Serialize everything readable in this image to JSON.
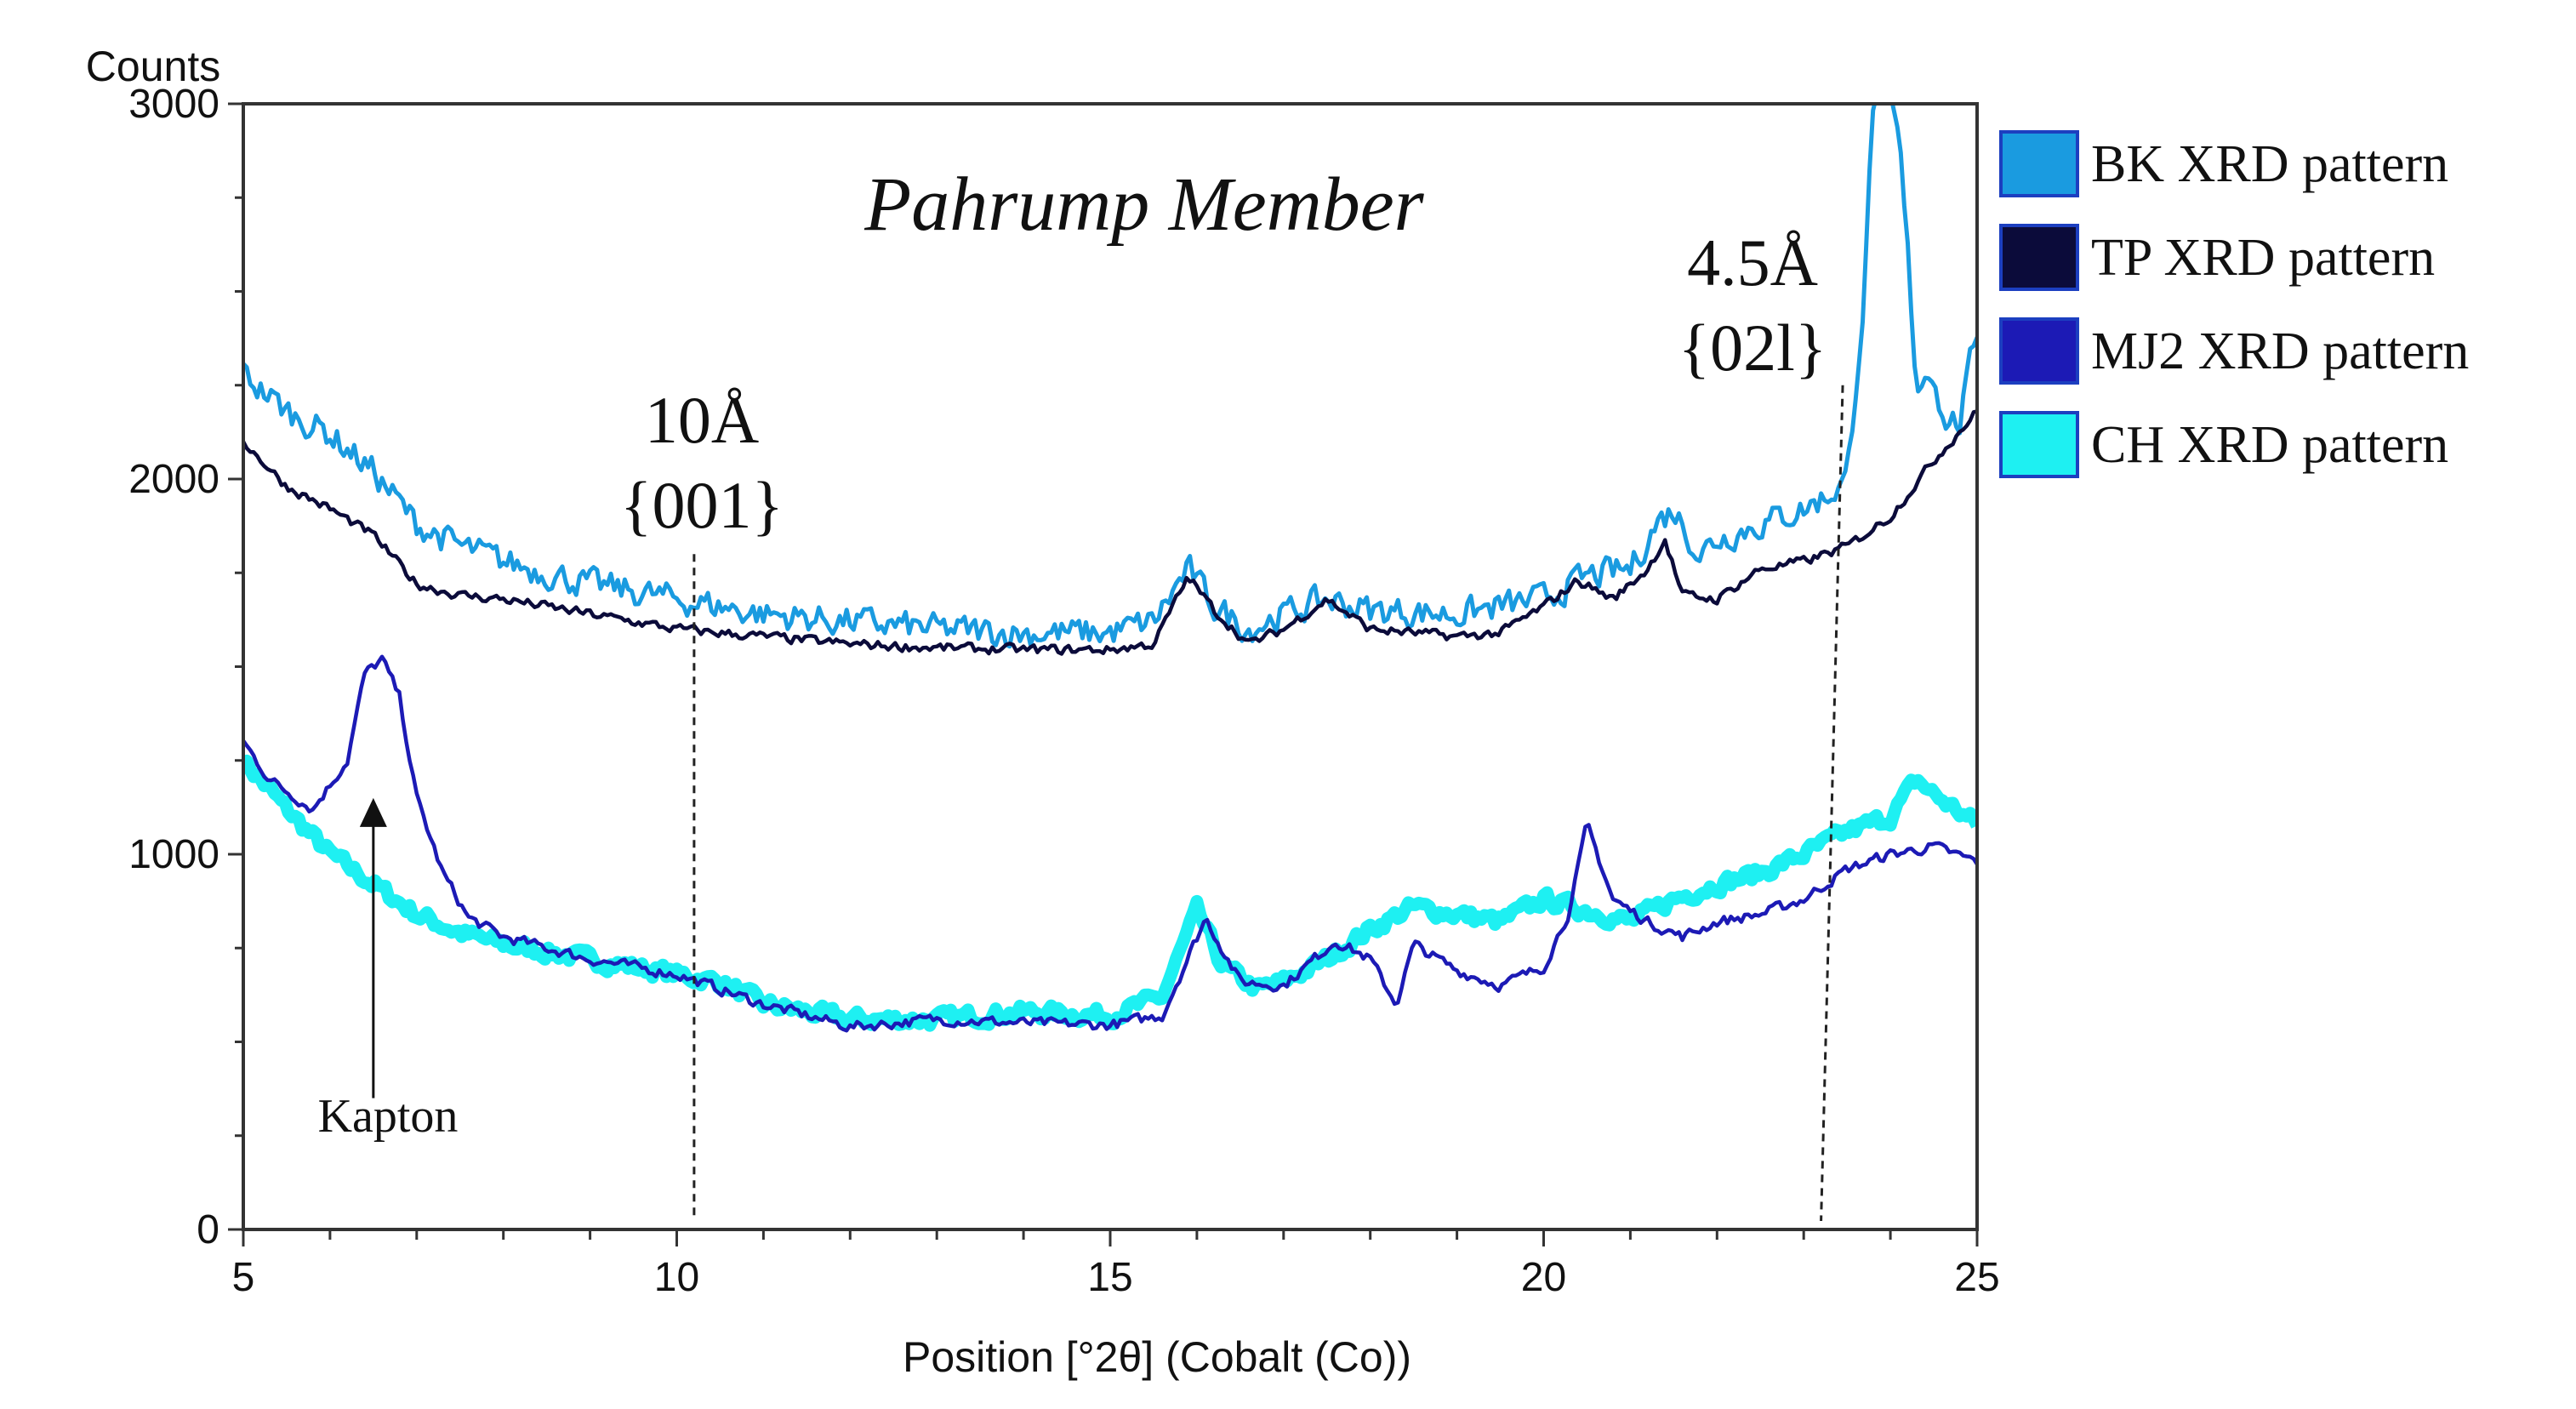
{
  "chart_data": {
    "type": "line",
    "title": "Pahrump Member",
    "ylabel": "Counts",
    "xlabel": "Position [°2θ] (Cobalt (Co))",
    "xlim": [
      5,
      25
    ],
    "ylim": [
      0,
      3000
    ],
    "xticks": [
      5,
      10,
      15,
      20,
      25
    ],
    "yticks": [
      0,
      1000,
      2000,
      3000
    ],
    "grid": false,
    "legend_position": "right",
    "series": [
      {
        "name": "BK XRD pattern",
        "color": "#1a9be0",
        "noise": 55,
        "points": [
          [
            5,
            2280
          ],
          [
            5.5,
            2180
          ],
          [
            6,
            2120
          ],
          [
            6.5,
            2020
          ],
          [
            7,
            1880
          ],
          [
            7.5,
            1820
          ],
          [
            8,
            1780
          ],
          [
            8.5,
            1750
          ],
          [
            9,
            1720
          ],
          [
            10,
            1680
          ],
          [
            11,
            1640
          ],
          [
            12,
            1620
          ],
          [
            13,
            1600
          ],
          [
            14,
            1590
          ],
          [
            15,
            1590
          ],
          [
            15.5,
            1620
          ],
          [
            15.9,
            1760
          ],
          [
            16.2,
            1660
          ],
          [
            16.6,
            1600
          ],
          [
            17,
            1640
          ],
          [
            17.5,
            1680
          ],
          [
            18,
            1650
          ],
          [
            19,
            1640
          ],
          [
            20,
            1680
          ],
          [
            20.5,
            1740
          ],
          [
            21,
            1760
          ],
          [
            21.3,
            1880
          ],
          [
            21.5,
            1920
          ],
          [
            21.8,
            1800
          ],
          [
            22,
            1840
          ],
          [
            22.5,
            1880
          ],
          [
            23,
            1920
          ],
          [
            23.3,
            1960
          ],
          [
            23.5,
            2000
          ],
          [
            23.7,
            2500
          ],
          [
            23.8,
            3000
          ],
          [
            23.9,
            3000
          ],
          [
            24,
            3000
          ],
          [
            24.1,
            2900
          ],
          [
            24.2,
            2600
          ],
          [
            24.3,
            2250
          ],
          [
            24.5,
            2300
          ],
          [
            24.6,
            2160
          ],
          [
            24.8,
            2150
          ],
          [
            25,
            2400
          ]
        ]
      },
      {
        "name": "TP XRD pattern",
        "color": "#0b0b3a",
        "noise": 18,
        "points": [
          [
            5,
            2100
          ],
          [
            5.5,
            1980
          ],
          [
            6,
            1920
          ],
          [
            6.5,
            1850
          ],
          [
            7,
            1720
          ],
          [
            7.5,
            1690
          ],
          [
            8,
            1680
          ],
          [
            8.5,
            1660
          ],
          [
            9,
            1640
          ],
          [
            10,
            1600
          ],
          [
            11,
            1580
          ],
          [
            12,
            1560
          ],
          [
            13,
            1550
          ],
          [
            14,
            1545
          ],
          [
            15,
            1545
          ],
          [
            15.5,
            1560
          ],
          [
            15.9,
            1740
          ],
          [
            16.2,
            1650
          ],
          [
            16.6,
            1560
          ],
          [
            17,
            1600
          ],
          [
            17.5,
            1680
          ],
          [
            18,
            1600
          ],
          [
            19,
            1580
          ],
          [
            19.5,
            1590
          ],
          [
            20,
            1660
          ],
          [
            20.4,
            1730
          ],
          [
            20.8,
            1680
          ],
          [
            21.2,
            1760
          ],
          [
            21.4,
            1840
          ],
          [
            21.6,
            1690
          ],
          [
            22,
            1680
          ],
          [
            22.5,
            1760
          ],
          [
            23,
            1780
          ],
          [
            23.5,
            1820
          ],
          [
            24,
            1900
          ],
          [
            24.5,
            2050
          ],
          [
            25,
            2180
          ]
        ]
      },
      {
        "name": "MJ2 XRD pattern",
        "color": "#1c1ab5",
        "noise": 20,
        "points": [
          [
            5,
            1300
          ],
          [
            5.3,
            1200
          ],
          [
            5.8,
            1120
          ],
          [
            6.2,
            1250
          ],
          [
            6.4,
            1480
          ],
          [
            6.6,
            1520
          ],
          [
            6.8,
            1420
          ],
          [
            7,
            1150
          ],
          [
            7.3,
            950
          ],
          [
            7.6,
            830
          ],
          [
            8,
            780
          ],
          [
            9,
            720
          ],
          [
            10,
            680
          ],
          [
            11,
            600
          ],
          [
            12,
            540
          ],
          [
            13,
            560
          ],
          [
            14,
            550
          ],
          [
            15,
            545
          ],
          [
            15.6,
            570
          ],
          [
            16.1,
            830
          ],
          [
            16.5,
            660
          ],
          [
            17,
            650
          ],
          [
            17.6,
            770
          ],
          [
            18,
            720
          ],
          [
            18.3,
            600
          ],
          [
            18.5,
            760
          ],
          [
            19,
            690
          ],
          [
            19.5,
            650
          ],
          [
            20,
            700
          ],
          [
            20.3,
            850
          ],
          [
            20.5,
            1080
          ],
          [
            20.8,
            880
          ],
          [
            21.2,
            820
          ],
          [
            21.6,
            780
          ],
          [
            22,
            820
          ],
          [
            22.5,
            840
          ],
          [
            23,
            880
          ],
          [
            23.5,
            960
          ],
          [
            24,
            1000
          ],
          [
            24.5,
            1020
          ],
          [
            25,
            980
          ]
        ]
      },
      {
        "name": "CH XRD pattern",
        "color": "#1ef0f2",
        "noise": 28,
        "points": [
          [
            5,
            1250
          ],
          [
            5.5,
            1120
          ],
          [
            6,
            1000
          ],
          [
            6.5,
            920
          ],
          [
            7,
            840
          ],
          [
            7.5,
            790
          ],
          [
            8,
            760
          ],
          [
            8.5,
            740
          ],
          [
            9,
            720
          ],
          [
            10,
            680
          ],
          [
            10.5,
            660
          ],
          [
            11,
            600
          ],
          [
            12,
            560
          ],
          [
            13,
            560
          ],
          [
            14,
            580
          ],
          [
            15,
            570
          ],
          [
            15.6,
            620
          ],
          [
            16,
            850
          ],
          [
            16.3,
            700
          ],
          [
            16.7,
            640
          ],
          [
            17,
            660
          ],
          [
            17.5,
            720
          ],
          [
            18,
            800
          ],
          [
            18.5,
            860
          ],
          [
            19,
            840
          ],
          [
            19.5,
            820
          ],
          [
            20,
            880
          ],
          [
            20.5,
            850
          ],
          [
            21,
            820
          ],
          [
            21.5,
            880
          ],
          [
            22,
            920
          ],
          [
            22.5,
            950
          ],
          [
            23,
            1000
          ],
          [
            23.5,
            1060
          ],
          [
            24,
            1100
          ],
          [
            24.3,
            1200
          ],
          [
            24.5,
            1160
          ],
          [
            25,
            1080
          ]
        ]
      }
    ],
    "annotations": {
      "peak1": {
        "label": "10Å",
        "hkl": "{001}",
        "x": 10.2
      },
      "peak2": {
        "label": "4.5Å",
        "hkl": "{02l}",
        "x": 23.2
      },
      "kapton": {
        "label": "Kapton",
        "x": 6.5,
        "y_from": 350,
        "y_to": 1150
      }
    }
  }
}
